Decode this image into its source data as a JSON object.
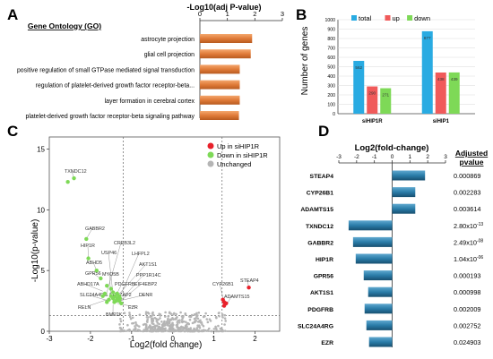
{
  "panel_labels": [
    "A",
    "B",
    "C",
    "D"
  ],
  "chart_data": [
    {
      "panel": "A",
      "type": "bar",
      "orientation": "horizontal",
      "title": "-Log10(adj P-value)",
      "category_header": "Gene Ontology (GO)",
      "categories": [
        "astrocyte projection",
        "glial cell projection",
        "positive regulation of small GTPase mediated signal transduction",
        "regulation of platelet-derived growth factor receptor-beta...",
        "layer formation in cerebral cortex",
        "platelet-derived growth factor receptor-beta signaling pathway"
      ],
      "values": [
        1.9,
        1.85,
        1.45,
        1.45,
        1.45,
        1.42
      ],
      "xlim": [
        0,
        3
      ],
      "xticks": [
        0,
        1,
        2,
        3
      ],
      "color": "#e07b39"
    },
    {
      "panel": "B",
      "type": "bar",
      "ylabel": "Number of genes",
      "ylim": [
        0,
        1000
      ],
      "yticks": [
        0,
        100,
        200,
        300,
        400,
        500,
        600,
        700,
        800,
        900,
        1000
      ],
      "categories": [
        "siHIP1R",
        "siHIP1"
      ],
      "series": [
        {
          "name": "total",
          "values": [
            562,
            877
          ],
          "color": "#29abe2"
        },
        {
          "name": "up",
          "values": [
            290,
            438
          ],
          "color": "#f05a5a"
        },
        {
          "name": "down",
          "values": [
            271,
            439
          ],
          "color": "#7ed957"
        }
      ],
      "data_labels": [
        [
          "562",
          "290",
          "271"
        ],
        [
          "877",
          "438",
          "439"
        ]
      ],
      "legend": "top"
    },
    {
      "panel": "C",
      "type": "scatter",
      "xlabel": "Log2(fold change)",
      "ylabel": "-Log10(p-value)",
      "xlim": [
        -3,
        2.6
      ],
      "ylim": [
        0,
        16
      ],
      "xticks": [
        -3,
        -2,
        -1,
        0,
        1,
        2
      ],
      "yticks": [
        0,
        5,
        10,
        15
      ],
      "thresholds": {
        "x": [
          -1.2,
          1.2
        ],
        "y": 1.3
      },
      "legend": "top-right",
      "series": [
        {
          "name": "Up in siHIP1R",
          "color": "#e8212b",
          "points": [
            [
              1.85,
              3.6
            ],
            [
              1.25,
              2.4
            ],
            [
              1.25,
              2.1
            ],
            [
              1.3,
              2.3
            ],
            [
              1.22,
              2.6
            ]
          ]
        },
        {
          "name": "Down in siHIP1R",
          "color": "#7ed957",
          "points": [
            [
              -2.4,
              12.6
            ],
            [
              -2.55,
              12.3
            ],
            [
              -2.1,
              7.6
            ],
            [
              -2.05,
              6.0
            ],
            [
              -1.85,
              5.0
            ],
            [
              -1.75,
              4.35
            ],
            [
              -1.6,
              3.75
            ],
            [
              -1.5,
              3.5
            ],
            [
              -1.45,
              3.2
            ],
            [
              -1.4,
              2.9
            ],
            [
              -1.35,
              2.7
            ],
            [
              -1.3,
              2.5
            ],
            [
              -1.55,
              2.6
            ],
            [
              -1.65,
              3.1
            ],
            [
              -1.5,
              2.9
            ],
            [
              -1.35,
              3.1
            ],
            [
              -1.45,
              2.7
            ],
            [
              -1.25,
              2.3
            ],
            [
              -1.6,
              2.4
            ],
            [
              -1.38,
              2.5
            ],
            [
              -1.3,
              2.9
            ],
            [
              -1.7,
              2.9
            ],
            [
              -1.42,
              2.4
            ],
            [
              -1.28,
              2.7
            ]
          ]
        },
        {
          "name": "Unchanged",
          "color": "#b5b5b5",
          "points": []
        }
      ],
      "annotations": [
        {
          "label": "TXNDC12",
          "x": -2.4,
          "y": 12.6
        },
        {
          "label": "GABBR2",
          "x": -2.1,
          "y": 7.6
        },
        {
          "label": "CREB3L2",
          "x": -1.6,
          "y": 3.2
        },
        {
          "label": "HIP1R",
          "x": -2.05,
          "y": 6.0
        },
        {
          "label": "USP46",
          "x": -1.45,
          "y": 3.0
        },
        {
          "label": "LHFPL2",
          "x": -1.3,
          "y": 2.7
        },
        {
          "label": "ABHD5",
          "x": -1.85,
          "y": 5.0
        },
        {
          "label": "AKT1S1",
          "x": -1.35,
          "y": 2.9
        },
        {
          "label": "GPR56",
          "x": -1.75,
          "y": 4.35
        },
        {
          "label": "MYO5B",
          "x": -1.5,
          "y": 2.8
        },
        {
          "label": "PPP1R14C",
          "x": -1.25,
          "y": 2.6
        },
        {
          "label": "PDGFRB",
          "x": -1.45,
          "y": 2.5
        },
        {
          "label": "EIF4EBP2",
          "x": -1.3,
          "y": 2.4
        },
        {
          "label": "ABHD17A",
          "x": -1.7,
          "y": 3.3
        },
        {
          "label": "SLC24A4RG",
          "x": -1.55,
          "y": 2.5
        },
        {
          "label": "SDAZAP2",
          "x": -1.4,
          "y": 2.4
        },
        {
          "label": "DENR",
          "x": -1.3,
          "y": 2.5
        },
        {
          "label": "RELN",
          "x": -1.6,
          "y": 2.6
        },
        {
          "label": "EZR",
          "x": -1.35,
          "y": 2.3
        },
        {
          "label": "BMP2K",
          "x": -1.45,
          "y": 2.2
        },
        {
          "label": "STEAP4",
          "x": 1.85,
          "y": 3.6
        },
        {
          "label": "CYP26B1",
          "x": 1.25,
          "y": 2.4
        },
        {
          "label": "ADAMTS15",
          "x": 1.3,
          "y": 2.1
        }
      ]
    },
    {
      "panel": "D",
      "type": "bar",
      "orientation": "horizontal",
      "title": "Log2(fold-change)",
      "table_header": "Adjusted pvalue",
      "xlim": [
        -3,
        3
      ],
      "xticks": [
        -3,
        -2,
        -1,
        0,
        1,
        2,
        3
      ],
      "color": "#2a7ca8",
      "categories": [
        "STEAP4",
        "CYP26B1",
        "ADAMTS15",
        "TXNDC12",
        "GABBR2",
        "HIP1R",
        "GPR56",
        "AKT1S1",
        "PDGFRB",
        "SLC24A4RG",
        "EZR"
      ],
      "values": [
        1.85,
        1.3,
        1.3,
        -2.45,
        -2.2,
        -2.05,
        -1.6,
        -1.35,
        -1.55,
        -1.45,
        -1.3
      ],
      "pvalues": [
        {
          "base": "0.000869",
          "exp": ""
        },
        {
          "base": "0.002283",
          "exp": ""
        },
        {
          "base": "0.003614",
          "exp": ""
        },
        {
          "base": "2.80x10",
          "exp": "-13"
        },
        {
          "base": "2.49x10",
          "exp": "-08"
        },
        {
          "base": "1.04x10",
          "exp": "-06"
        },
        {
          "base": "0.000193",
          "exp": ""
        },
        {
          "base": "0.000998",
          "exp": ""
        },
        {
          "base": "0.002009",
          "exp": ""
        },
        {
          "base": "0.002752",
          "exp": ""
        },
        {
          "base": "0.024903",
          "exp": ""
        }
      ]
    }
  ]
}
